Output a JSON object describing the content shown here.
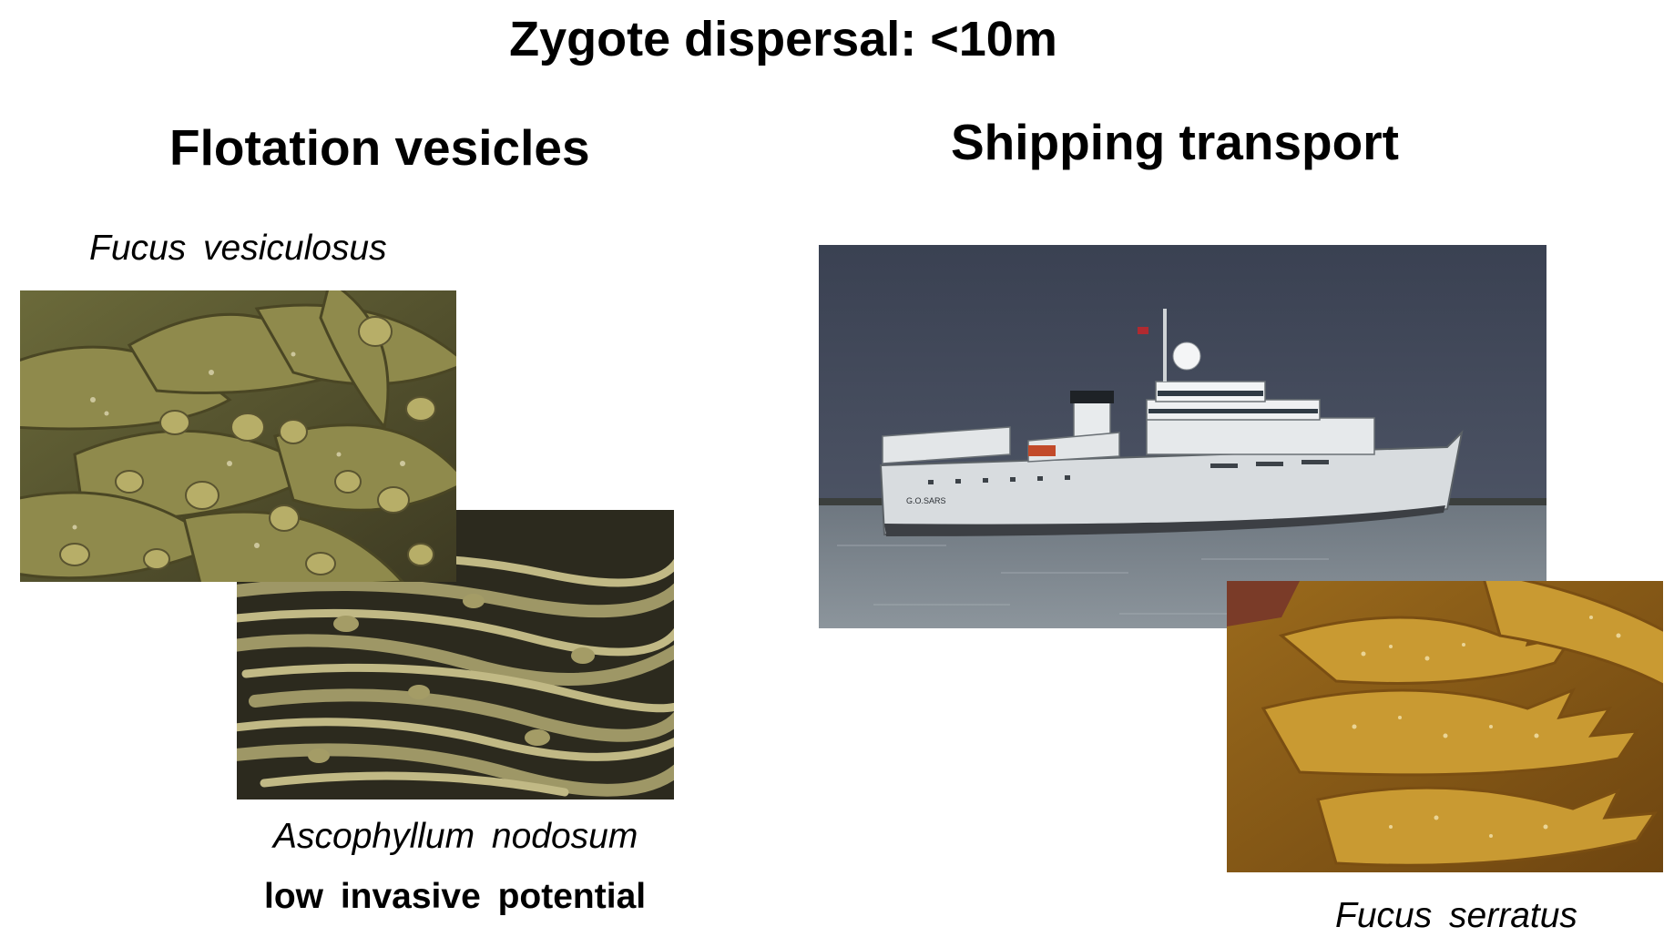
{
  "slide": {
    "title": "Zygote dispersal: <10m",
    "left_heading": "Flotation vesicles",
    "right_heading": "Shipping transport",
    "captions": {
      "fucus_vesiculosus": "Fucus  vesiculosus",
      "ascophyllum_nodosum": "Ascophyllum  nodosum",
      "fucus_serratus": "Fucus  serratus"
    },
    "note": "low  invasive  potential"
  },
  "ship_label": "G.O.SARS"
}
